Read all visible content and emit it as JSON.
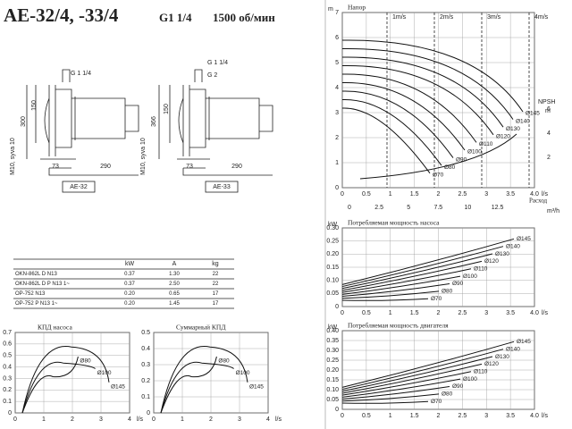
{
  "header": {
    "title": "AE-32/4, -33/4",
    "connection": "G1 1/4",
    "speed": "1500 об/мин"
  },
  "drawings": [
    {
      "name": "AE-32",
      "labels": [
        "G 1 1/4",
        "150",
        "300",
        "M10, syva 10",
        "73",
        "290"
      ]
    },
    {
      "name": "AE-33",
      "labels": [
        "G 1 1/4",
        "G 2",
        "366",
        "150",
        "M10, syva 10",
        "73",
        "290"
      ]
    }
  ],
  "table": {
    "header": [
      "kW",
      "A",
      "kg"
    ],
    "rows": [
      [
        "OKN-862L D N13",
        "0.37",
        "1.30",
        "22"
      ],
      [
        "OKN-862L D P N13 1~",
        "0.37",
        "2.50",
        "22"
      ],
      [
        "OP-752 N13",
        "0.20",
        "0.65",
        "17"
      ],
      [
        "OP-752 P N13 1~",
        "0.20",
        "1.45",
        "17"
      ]
    ]
  },
  "charts": [
    {
      "title": "Напор",
      "y_unit": "m",
      "x_unit": "l/s",
      "x_title": "Расход",
      "yticks": [
        "0",
        "1",
        "2",
        "3",
        "4",
        "5",
        "6",
        "7"
      ],
      "xticks": [
        "0",
        "0.5",
        "1",
        "1.5",
        "2",
        "2.5",
        "3",
        "3.5",
        "4.0"
      ],
      "x2ticks": [
        "0",
        "2.5",
        "5",
        "7.5",
        "10",
        "12.5"
      ],
      "x2_unit": "m³/h",
      "velocities": [
        "1m/s",
        "2m/s",
        "3m/s",
        "4m/s"
      ],
      "npsh": {
        "title": "NPSH",
        "unit": "m",
        "ticks": [
          "2",
          "4",
          "6"
        ]
      },
      "curves": [
        "Ø145",
        "Ø140",
        "Ø130",
        "Ø120",
        "Ø110",
        "Ø100",
        "Ø90",
        "Ø80",
        "Ø70"
      ]
    },
    {
      "title": "Потребляемая мощность насоса",
      "y_unit": "kW",
      "x_unit": "l/s",
      "yticks": [
        "0",
        "0.05",
        "0.10",
        "0.15",
        "0.20",
        "0.25",
        "0.30"
      ],
      "xticks": [
        "0",
        "0.5",
        "1",
        "1.5",
        "2",
        "2.5",
        "3",
        "3.5",
        "4.0"
      ],
      "curves": [
        "Ø145",
        "Ø140",
        "Ø130",
        "Ø120",
        "Ø110",
        "Ø100",
        "Ø90",
        "Ø80",
        "Ø70"
      ]
    },
    {
      "title": "Потребляемая мощность двигателя",
      "y_unit": "kW",
      "x_unit": "l/s",
      "yticks": [
        "0",
        "0.05",
        "0.10",
        "0.15",
        "0.20",
        "0.25",
        "0.30",
        "0.35",
        "0.40"
      ],
      "xticks": [
        "0",
        "0.5",
        "1",
        "1.5",
        "2",
        "2.5",
        "3",
        "3.5",
        "4.0"
      ],
      "curves": [
        "Ø145",
        "Ø140",
        "Ø130",
        "Ø120",
        "Ø110",
        "Ø100",
        "Ø90",
        "Ø80",
        "Ø70"
      ]
    },
    {
      "title": "КПД насоса",
      "x_unit": "l/s",
      "yticks": [
        "0",
        "0.1",
        "0.2",
        "0.3",
        "0.4",
        "0.5",
        "0.6",
        "0.7"
      ],
      "xticks": [
        "0",
        "1",
        "2",
        "3",
        "4"
      ],
      "curves": [
        "Ø145",
        "Ø100",
        "Ø80"
      ]
    },
    {
      "title": "Суммарный КПД",
      "x_unit": "l/s",
      "yticks": [
        "0",
        "0.1",
        "0.2",
        "0.3",
        "0.4",
        "0.5"
      ],
      "xticks": [
        "0",
        "1",
        "2",
        "3",
        "4"
      ],
      "curves": [
        "Ø145",
        "Ø100",
        "Ø80"
      ]
    }
  ]
}
